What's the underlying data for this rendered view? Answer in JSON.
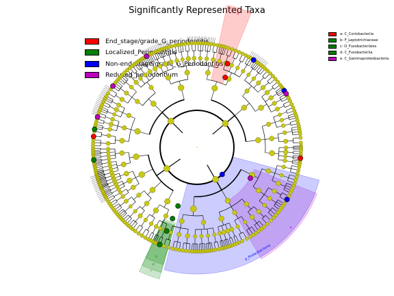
{
  "title": "Significantly Represented Taxa",
  "colors": {
    "node_default": "#c8c818",
    "node_edge": "#7a7a00",
    "End_stage": "#ff0000",
    "Localized": "#008000",
    "Non_end_stage": "#0000ff",
    "Reduced": "#c000c0"
  },
  "legend_main": [
    {
      "label": "End_stage/grade_G_periodontitis",
      "color": "#ff0000"
    },
    {
      "label": "Localized_Periodontitis",
      "color": "#008000"
    },
    {
      "label": "Non-end_stage/grade_G_Periodontitis",
      "color": "#0000ff"
    },
    {
      "label": "Reduced_periodontium",
      "color": "#c000c0"
    }
  ],
  "legend_side": [
    {
      "label": "a: C_Coriobacteriia",
      "color": "#ff0000"
    },
    {
      "label": "b: F_Leptotrichiaceae",
      "color": "#008000"
    },
    {
      "label": "c: O_Fusobacteriales",
      "color": "#008000"
    },
    {
      "label": "d: C_Fusobacteriia",
      "color": "#008000"
    },
    {
      "label": "e: C_Gammaproteobacteria",
      "color": "#c000c0"
    }
  ],
  "chart_data": {
    "type": "cladogram",
    "clade_sectors": [
      {
        "label": "a",
        "group": "End_stage/grade_G_periodontitis",
        "color": "#ff0000",
        "start_deg": 12,
        "end_deg": 22
      },
      {
        "label": "e",
        "group": "Reduced_periodontium",
        "color": "#c000c0",
        "start_deg": 111,
        "end_deg": 150
      },
      {
        "label": "b",
        "group": "Localized_Periodontitis",
        "color": "#008000",
        "start_deg": 196,
        "end_deg": 205
      },
      {
        "label": "c",
        "group": "Localized_Periodontitis",
        "color": "#008000",
        "start_deg": 196,
        "end_deg": 205
      },
      {
        "label": "d",
        "group": "Localized_Periodontitis",
        "color": "#008000",
        "start_deg": 196,
        "end_deg": 205
      },
      {
        "label": "p_Proteobacteria",
        "group": "Non-end_stage/grade_G_Periodontitis",
        "color": "#0000ff",
        "start_deg": 105,
        "end_deg": 195
      }
    ],
    "highlighted_nodes": [
      {
        "group": "End_stage/grade_G_periodontitis",
        "color": "#ff0000",
        "deg": 20,
        "level": 4
      },
      {
        "group": "End_stage/grade_G_periodontitis",
        "color": "#ff0000",
        "deg": 22,
        "level": 3
      },
      {
        "group": "End_stage/grade_G_periodontitis",
        "color": "#ff0000",
        "deg": 96,
        "level": 5
      },
      {
        "group": "End_stage/grade_G_periodontitis",
        "color": "#ff0000",
        "deg": 276,
        "level": 5
      },
      {
        "group": "Non-end_stage/grade_G_Periodontitis",
        "color": "#0000ff",
        "deg": 137,
        "level": 1
      },
      {
        "group": "Non-end_stage/grade_G_Periodontitis",
        "color": "#0000ff",
        "deg": 33,
        "level": 5
      },
      {
        "group": "Non-end_stage/grade_G_Periodontitis",
        "color": "#0000ff",
        "deg": 57,
        "level": 5
      },
      {
        "group": "Non-end_stage/grade_G_Periodontitis",
        "color": "#0000ff",
        "deg": 120,
        "level": 5
      },
      {
        "group": "Reduced_periodontium",
        "color": "#c000c0",
        "deg": 120,
        "level": 2
      },
      {
        "group": "Reduced_periodontium",
        "color": "#c000c0",
        "deg": 59,
        "level": 5
      },
      {
        "group": "Reduced_periodontium",
        "color": "#c000c0",
        "deg": 306,
        "level": 5
      },
      {
        "group": "Reduced_periodontium",
        "color": "#c000c0",
        "deg": 331,
        "level": 5
      },
      {
        "group": "Reduced_periodontium",
        "color": "#c000c0",
        "deg": 287,
        "level": 5
      },
      {
        "group": "Localized_Periodontitis",
        "color": "#008000",
        "deg": 198,
        "level": 2
      },
      {
        "group": "Localized_Periodontitis",
        "color": "#008000",
        "deg": 199,
        "level": 3
      },
      {
        "group": "Localized_Periodontitis",
        "color": "#008000",
        "deg": 200,
        "level": 4
      },
      {
        "group": "Localized_Periodontitis",
        "color": "#008000",
        "deg": 201,
        "level": 5
      },
      {
        "group": "Localized_Periodontitis",
        "color": "#008000",
        "deg": 263,
        "level": 5
      },
      {
        "group": "Localized_Periodontitis",
        "color": "#008000",
        "deg": 280,
        "level": 5
      }
    ]
  }
}
